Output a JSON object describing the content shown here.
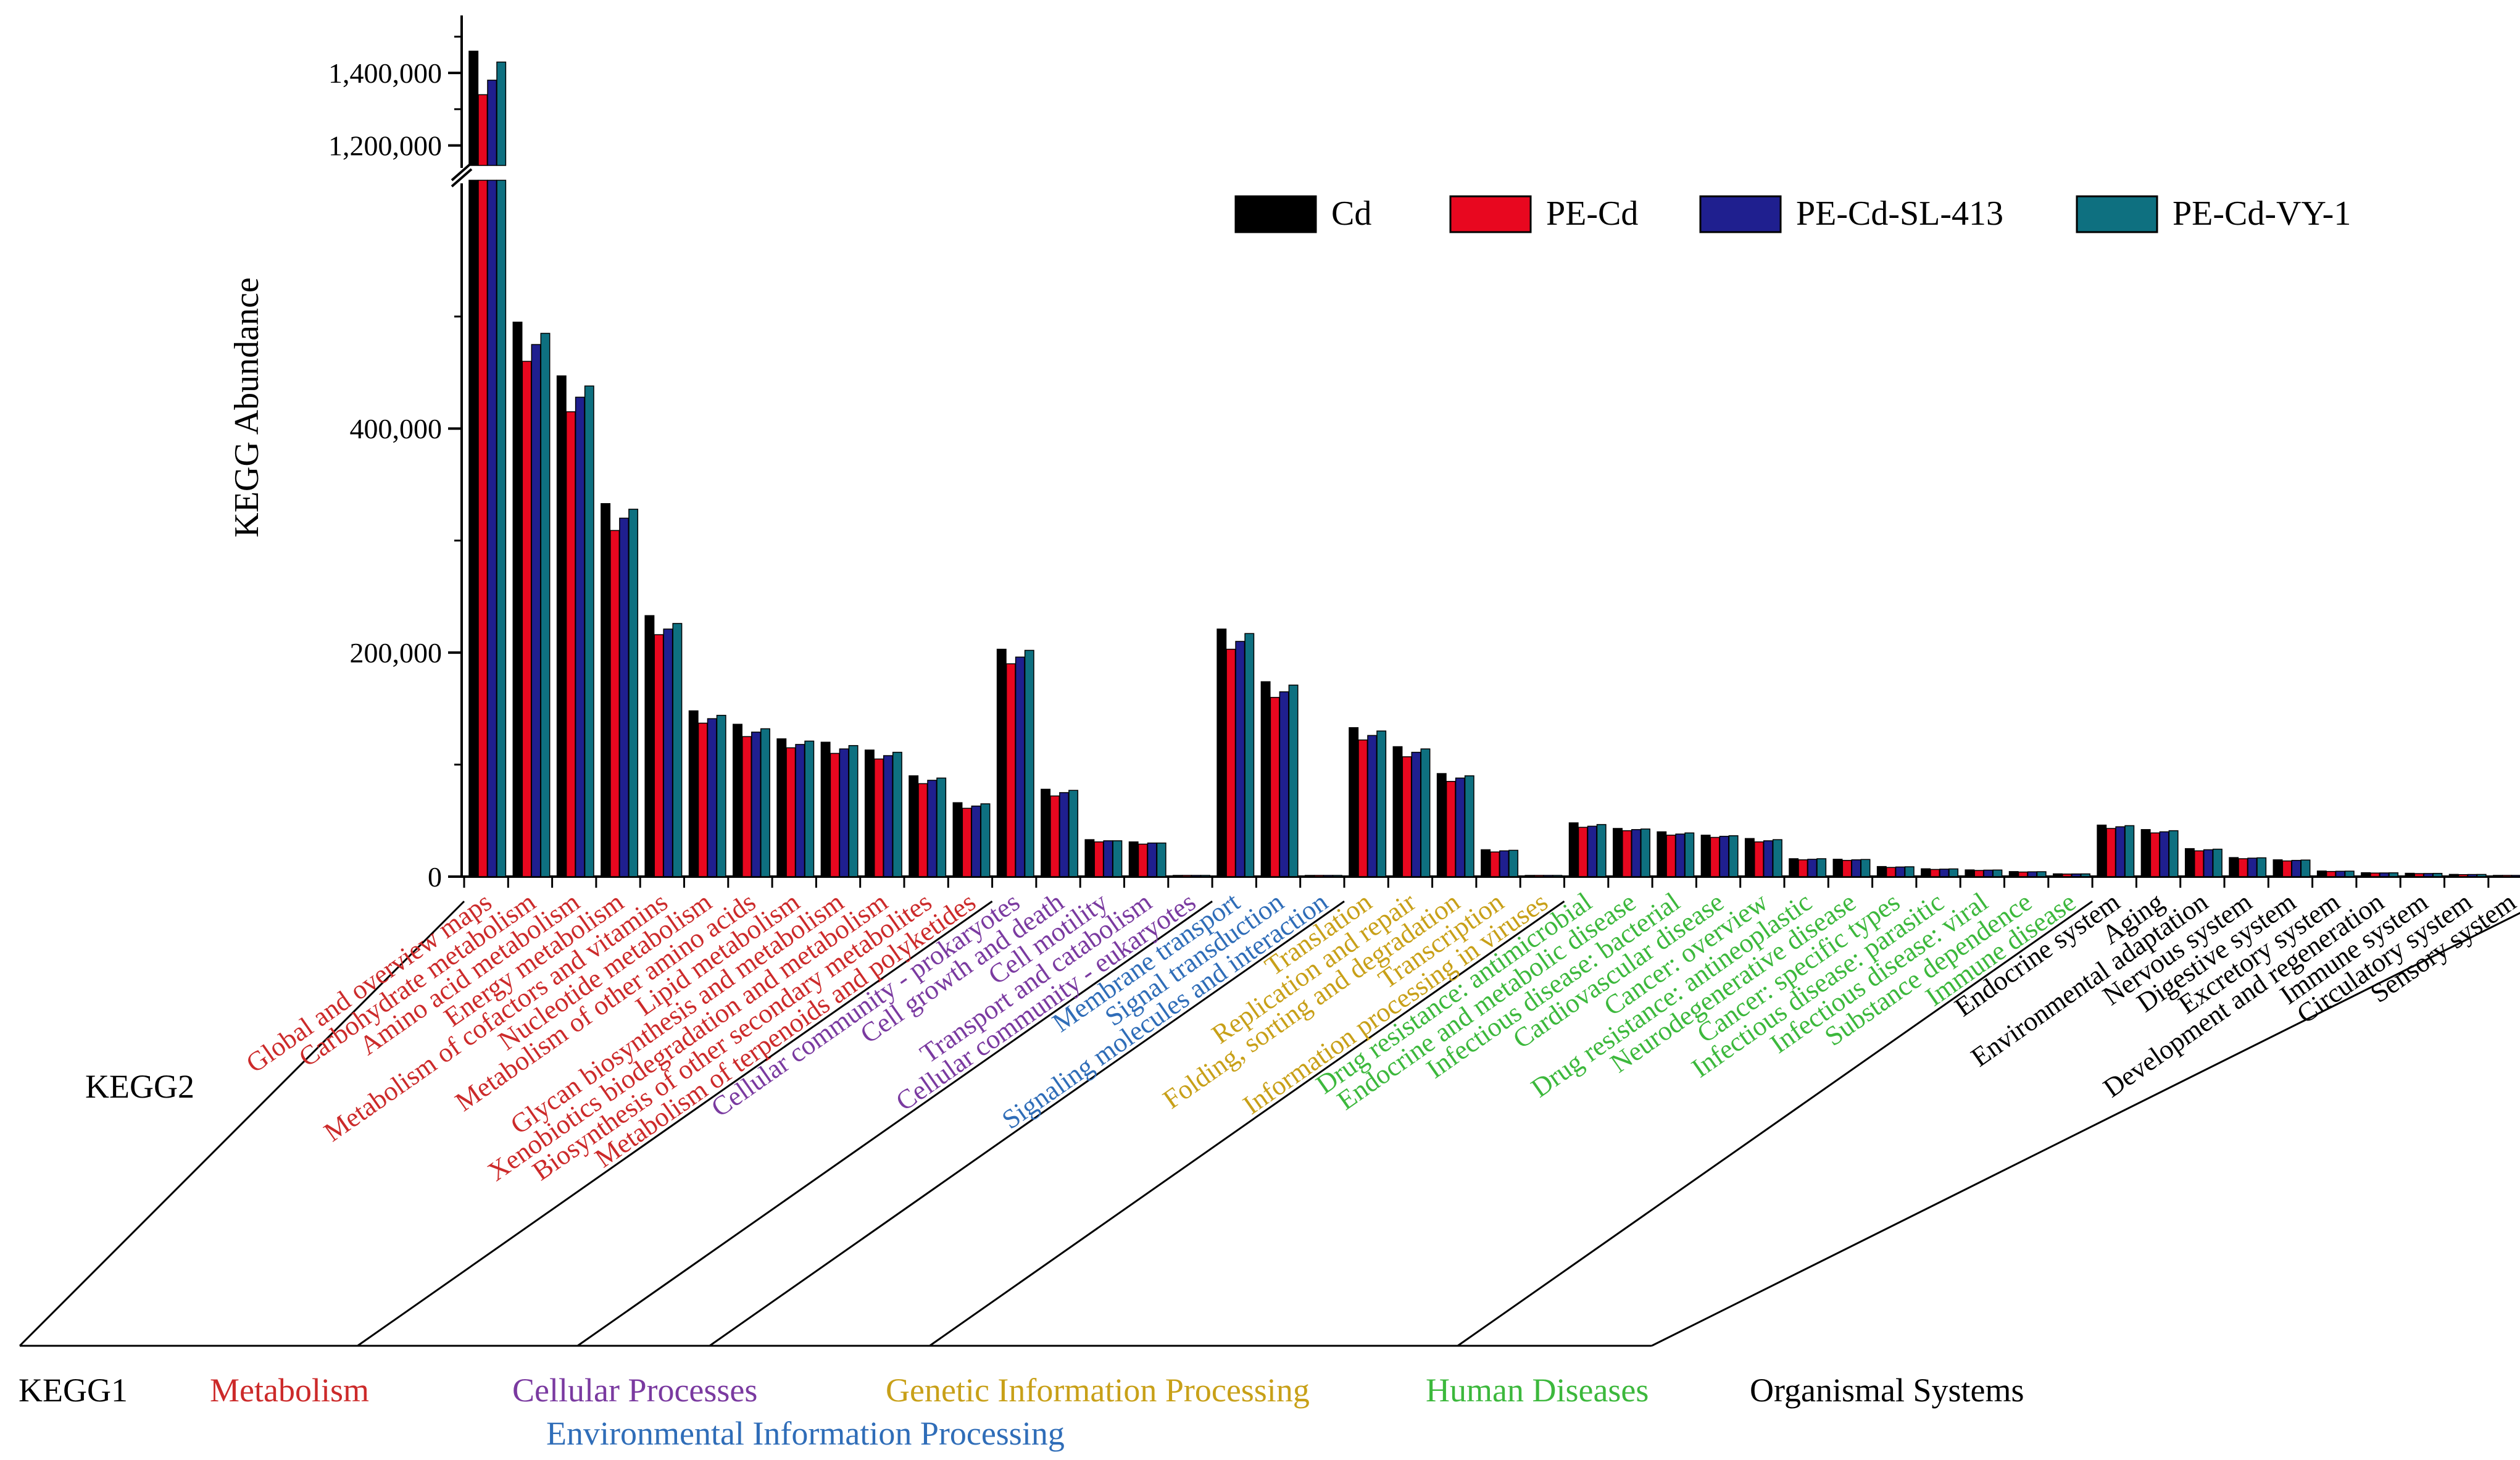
{
  "chart_data": {
    "type": "bar",
    "ylabel": "KEGG Abundance",
    "ylim_lower": [
      0,
      620000
    ],
    "ylim_upper": [
      1150000,
      1550000
    ],
    "yticks_lower": [
      {
        "value": 0,
        "label": "0"
      },
      {
        "value": 200000,
        "label": "200,000"
      },
      {
        "value": 400000,
        "label": "400,000"
      }
    ],
    "yticks_upper": [
      {
        "value": 1200000,
        "label": "1,200,000"
      },
      {
        "value": 1400000,
        "label": "1,400,000"
      }
    ],
    "kegg2_label": "KEGG2",
    "kegg1_label": "KEGG1",
    "legend": [
      {
        "name": "Cd",
        "color": "#000000"
      },
      {
        "name": "PE-Cd",
        "color": "#e8071f"
      },
      {
        "name": "PE-Cd-SL-413",
        "color": "#1f1f8f"
      },
      {
        "name": "PE-Cd-VY-1",
        "color": "#0e7080"
      }
    ],
    "groups": [
      {
        "name": "Metabolism",
        "color": "#cc2a2a",
        "label_row": 0
      },
      {
        "name": "Cellular Processes",
        "color": "#7a3aa0",
        "label_row": 0
      },
      {
        "name": "Environmental Information Processing",
        "color": "#2f6db8",
        "label_row": 1
      },
      {
        "name": "Genetic Information Processing",
        "color": "#c8a018",
        "label_row": 0
      },
      {
        "name": "Human Diseases",
        "color": "#3cb83c",
        "label_row": 0
      },
      {
        "name": "Organismal Systems",
        "color": "#000000",
        "label_row": 0
      }
    ],
    "categories": [
      {
        "name": "Global and overview maps",
        "group": 0,
        "values": [
          1460000,
          1340000,
          1380000,
          1430000
        ]
      },
      {
        "name": "Carbohydrate metabolism",
        "group": 0,
        "values": [
          495000,
          460000,
          475000,
          485000
        ]
      },
      {
        "name": "Amino acid metabolism",
        "group": 0,
        "values": [
          447000,
          415000,
          428000,
          438000
        ]
      },
      {
        "name": "Energy metabolism",
        "group": 0,
        "values": [
          333000,
          309000,
          320000,
          328000
        ]
      },
      {
        "name": "Metabolism of cofactors and vitamins",
        "group": 0,
        "values": [
          233000,
          216000,
          221000,
          226000
        ]
      },
      {
        "name": "Nucleotide metabolism",
        "group": 0,
        "values": [
          148000,
          137000,
          141000,
          144000
        ]
      },
      {
        "name": "Metabolism of other amino acids",
        "group": 0,
        "values": [
          136000,
          125000,
          129000,
          132000
        ]
      },
      {
        "name": "Lipid metabolism",
        "group": 0,
        "values": [
          123000,
          115000,
          118000,
          121000
        ]
      },
      {
        "name": "Glycan biosynthesis and metabolism",
        "group": 0,
        "values": [
          120000,
          110000,
          114000,
          117000
        ]
      },
      {
        "name": "Xenobiotics biodegradation and metabolism",
        "group": 0,
        "values": [
          113000,
          105000,
          108000,
          111000
        ]
      },
      {
        "name": "Biosynthesis of other secondary metabolites",
        "group": 0,
        "values": [
          90000,
          83000,
          86000,
          88000
        ]
      },
      {
        "name": "Metabolism of terpenoids and polyketides",
        "group": 0,
        "values": [
          66000,
          61000,
          63000,
          65000
        ]
      },
      {
        "name": "Cellular community - prokaryotes",
        "group": 1,
        "values": [
          203000,
          190000,
          196000,
          202000
        ]
      },
      {
        "name": "Cell growth and death",
        "group": 1,
        "values": [
          78000,
          72000,
          75000,
          77000
        ]
      },
      {
        "name": "Cell motility",
        "group": 1,
        "values": [
          33000,
          31000,
          32000,
          32000
        ]
      },
      {
        "name": "Transport and catabolism",
        "group": 1,
        "values": [
          31000,
          29000,
          30000,
          30000
        ]
      },
      {
        "name": "Cellular community - eukaryotes",
        "group": 1,
        "values": [
          500,
          400,
          450,
          480
        ]
      },
      {
        "name": "Membrane transport",
        "group": 2,
        "values": [
          221000,
          203000,
          210000,
          217000
        ]
      },
      {
        "name": "Signal transduction",
        "group": 2,
        "values": [
          174000,
          160000,
          165000,
          171000
        ]
      },
      {
        "name": "Signaling molecules and interaction",
        "group": 2,
        "values": [
          700,
          600,
          650,
          680
        ]
      },
      {
        "name": "Translation",
        "group": 3,
        "values": [
          133000,
          122000,
          126000,
          130000
        ]
      },
      {
        "name": "Replication and repair",
        "group": 3,
        "values": [
          116000,
          107000,
          111000,
          114000
        ]
      },
      {
        "name": "Folding, sorting and degradation",
        "group": 3,
        "values": [
          92000,
          85000,
          88000,
          90000
        ]
      },
      {
        "name": "Transcription",
        "group": 3,
        "values": [
          24000,
          22000,
          23000,
          23500
        ]
      },
      {
        "name": "Information processing in viruses",
        "group": 3,
        "values": [
          800,
          700,
          750,
          780
        ]
      },
      {
        "name": "Drug resistance: antimicrobial",
        "group": 4,
        "values": [
          48000,
          44000,
          45000,
          46500
        ]
      },
      {
        "name": "Endocrine and metabolic disease",
        "group": 4,
        "values": [
          43000,
          41000,
          42000,
          42500
        ]
      },
      {
        "name": "Infectious disease: bacterial",
        "group": 4,
        "values": [
          40000,
          37000,
          38000,
          39000
        ]
      },
      {
        "name": "Cardiovascular disease",
        "group": 4,
        "values": [
          37000,
          35000,
          36000,
          36500
        ]
      },
      {
        "name": "Cancer: overview",
        "group": 4,
        "values": [
          34000,
          31000,
          32000,
          33000
        ]
      },
      {
        "name": "Drug resistance: antineoplastic",
        "group": 4,
        "values": [
          16000,
          15000,
          15500,
          16000
        ]
      },
      {
        "name": "Neurodegenerative disease",
        "group": 4,
        "values": [
          15500,
          14500,
          15000,
          15300
        ]
      },
      {
        "name": "Cancer: specific types",
        "group": 4,
        "values": [
          9000,
          8200,
          8600,
          8800
        ]
      },
      {
        "name": "Infectious disease: parasitic",
        "group": 4,
        "values": [
          7000,
          6400,
          6700,
          6900
        ]
      },
      {
        "name": "Infectious disease: viral",
        "group": 4,
        "values": [
          6000,
          5500,
          5800,
          5900
        ]
      },
      {
        "name": "Substance dependence",
        "group": 4,
        "values": [
          4500,
          4100,
          4300,
          4400
        ]
      },
      {
        "name": "Immune disease",
        "group": 4,
        "values": [
          2500,
          2300,
          2400,
          2450
        ]
      },
      {
        "name": "Endocrine system",
        "group": 5,
        "values": [
          46000,
          43000,
          44500,
          45500
        ]
      },
      {
        "name": "Aging",
        "group": 5,
        "values": [
          42000,
          39000,
          40000,
          41000
        ]
      },
      {
        "name": "Environmental adaptation",
        "group": 5,
        "values": [
          25000,
          23000,
          24000,
          24500
        ]
      },
      {
        "name": "Nervous system",
        "group": 5,
        "values": [
          17000,
          16000,
          16500,
          16800
        ]
      },
      {
        "name": "Digestive system",
        "group": 5,
        "values": [
          15000,
          14000,
          14500,
          14800
        ]
      },
      {
        "name": "Excretory system",
        "group": 5,
        "values": [
          5000,
          4600,
          4800,
          4900
        ]
      },
      {
        "name": "Development and regeneration",
        "group": 5,
        "values": [
          3500,
          3200,
          3300,
          3400
        ]
      },
      {
        "name": "Immune system",
        "group": 5,
        "values": [
          3000,
          2700,
          2800,
          2900
        ]
      },
      {
        "name": "Circulatory system",
        "group": 5,
        "values": [
          2000,
          1800,
          1900,
          1950
        ]
      },
      {
        "name": "Sensory system",
        "group": 5,
        "values": [
          500,
          450,
          470,
          490
        ]
      }
    ]
  }
}
